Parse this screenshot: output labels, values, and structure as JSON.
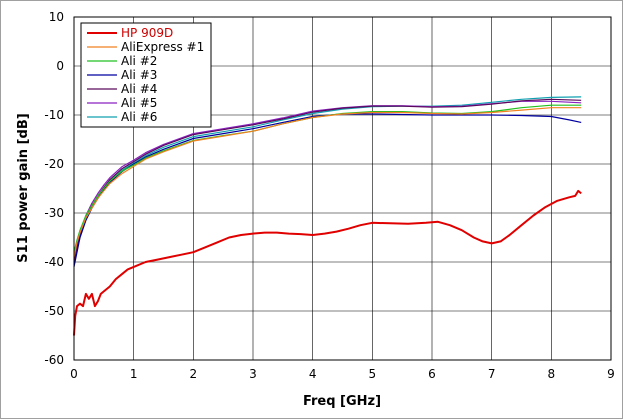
{
  "chart_data": {
    "type": "line",
    "xlabel": "Freq [GHz]",
    "ylabel": "S11 power gain [dB]",
    "xlim": [
      0,
      9
    ],
    "ylim": [
      -60,
      10
    ],
    "xticks": [
      0,
      1,
      2,
      3,
      4,
      5,
      6,
      7,
      8,
      9
    ],
    "yticks": [
      10,
      0,
      -10,
      -20,
      -30,
      -40,
      -50,
      -60
    ],
    "grid": true,
    "legend_position": "top-left",
    "series": [
      {
        "name": "HP 909D",
        "color": "#e00000",
        "x": [
          0.0,
          0.02,
          0.05,
          0.1,
          0.15,
          0.2,
          0.25,
          0.3,
          0.35,
          0.4,
          0.45,
          0.5,
          0.6,
          0.7,
          0.8,
          0.9,
          1.0,
          1.2,
          1.4,
          1.6,
          1.8,
          2.0,
          2.2,
          2.4,
          2.6,
          2.8,
          3.0,
          3.2,
          3.4,
          3.6,
          3.8,
          4.0,
          4.2,
          4.4,
          4.6,
          4.8,
          5.0,
          5.3,
          5.6,
          5.9,
          6.1,
          6.3,
          6.5,
          6.7,
          6.85,
          7.0,
          7.15,
          7.3,
          7.5,
          7.7,
          7.9,
          8.1,
          8.3,
          8.4,
          8.45,
          8.5
        ],
        "y": [
          -55,
          -51,
          -49,
          -48.5,
          -49,
          -46.5,
          -47.5,
          -46.5,
          -49,
          -48,
          -46.5,
          -46,
          -45,
          -43.5,
          -42.5,
          -41.5,
          -41,
          -40,
          -39.5,
          -39,
          -38.5,
          -38,
          -37,
          -36,
          -35,
          -34.5,
          -34.2,
          -34,
          -34,
          -34.2,
          -34.3,
          -34.5,
          -34.2,
          -33.8,
          -33.2,
          -32.5,
          -32,
          -32.1,
          -32.2,
          -32,
          -31.8,
          -32.5,
          -33.5,
          -35,
          -35.8,
          -36.2,
          -35.8,
          -34.5,
          -32.5,
          -30.5,
          -28.8,
          -27.5,
          -26.8,
          -26.5,
          -25.5,
          -26
        ]
      },
      {
        "name": "AliExpress #1",
        "color": "#f08020",
        "x": [
          0.0,
          0.05,
          0.1,
          0.2,
          0.3,
          0.4,
          0.5,
          0.6,
          0.8,
          1.0,
          1.2,
          1.5,
          2.0,
          2.5,
          3.0,
          3.5,
          4.0,
          4.5,
          5.0,
          5.5,
          6.0,
          6.5,
          7.0,
          7.5,
          8.0,
          8.5
        ],
        "y": [
          -39,
          -36,
          -34,
          -31,
          -29,
          -27,
          -25.5,
          -24,
          -22,
          -20.5,
          -19,
          -17.5,
          -15.3,
          -14.3,
          -13.3,
          -11.8,
          -10.5,
          -9.8,
          -9.5,
          -9.5,
          -9.7,
          -9.8,
          -9.5,
          -9,
          -8.5,
          -8.5
        ]
      },
      {
        "name": "Ali #2",
        "color": "#20c020",
        "x": [
          0.0,
          0.05,
          0.1,
          0.2,
          0.3,
          0.4,
          0.5,
          0.6,
          0.8,
          1.0,
          1.2,
          1.5,
          2.0,
          2.5,
          3.0,
          3.5,
          4.0,
          4.5,
          5.0,
          5.5,
          6.0,
          6.5,
          7.0,
          7.5,
          8.0,
          8.5
        ],
        "y": [
          -38,
          -35.5,
          -33.5,
          -30.5,
          -28.5,
          -26.5,
          -25,
          -23.5,
          -21.5,
          -20.2,
          -18.8,
          -17.3,
          -15.2,
          -14.2,
          -13.3,
          -11.8,
          -10.5,
          -9.7,
          -9.3,
          -9.3,
          -9.6,
          -9.7,
          -9.3,
          -8.5,
          -8,
          -8
        ]
      },
      {
        "name": "Ali #3",
        "color": "#0000a0",
        "x": [
          0.0,
          0.05,
          0.1,
          0.2,
          0.3,
          0.4,
          0.5,
          0.6,
          0.8,
          1.0,
          1.2,
          1.5,
          2.0,
          2.5,
          3.0,
          3.5,
          4.0,
          4.5,
          5.0,
          5.5,
          6.0,
          6.5,
          7.0,
          7.5,
          8.0,
          8.3,
          8.5
        ],
        "y": [
          -41,
          -38,
          -35,
          -31.5,
          -29,
          -27,
          -25.3,
          -23.8,
          -21.6,
          -20,
          -18.6,
          -17,
          -14.8,
          -13.8,
          -12.8,
          -11.5,
          -10.3,
          -9.8,
          -9.8,
          -9.9,
          -10,
          -10,
          -10,
          -10.1,
          -10.3,
          -11,
          -11.5
        ]
      },
      {
        "name": "Ali #4",
        "color": "#5a0a5a",
        "x": [
          0.0,
          0.05,
          0.1,
          0.2,
          0.3,
          0.4,
          0.5,
          0.6,
          0.8,
          1.0,
          1.2,
          1.5,
          2.0,
          2.5,
          3.0,
          3.5,
          4.0,
          4.5,
          5.0,
          5.5,
          6.0,
          6.5,
          7.0,
          7.5,
          8.0,
          8.5
        ],
        "y": [
          -40,
          -37,
          -34.5,
          -31,
          -28.5,
          -26.5,
          -24.8,
          -23.2,
          -21,
          -19.5,
          -18,
          -16.2,
          -14,
          -13,
          -12,
          -10.8,
          -9.4,
          -8.6,
          -8.2,
          -8.2,
          -8.4,
          -8.3,
          -7.8,
          -7.1,
          -6.8,
          -7
        ]
      },
      {
        "name": "Ali #5",
        "color": "#8a20c0",
        "x": [
          0.0,
          0.05,
          0.1,
          0.2,
          0.3,
          0.4,
          0.5,
          0.6,
          0.8,
          1.0,
          1.2,
          1.5,
          2.0,
          2.5,
          3.0,
          3.5,
          4.0,
          4.5,
          5.0,
          5.5,
          6.0,
          6.5,
          7.0,
          7.5,
          8.0,
          8.5
        ],
        "y": [
          -39.5,
          -36.5,
          -34,
          -30.5,
          -28,
          -26,
          -24.3,
          -22.8,
          -20.6,
          -19.2,
          -17.7,
          -16,
          -13.8,
          -12.8,
          -11.8,
          -10.6,
          -9.2,
          -8.5,
          -8.1,
          -8.1,
          -8.3,
          -8.2,
          -7.7,
          -7.2,
          -7.2,
          -7.5
        ]
      },
      {
        "name": "Ali #6",
        "color": "#10a0b0",
        "x": [
          0.0,
          0.05,
          0.1,
          0.2,
          0.3,
          0.4,
          0.5,
          0.6,
          0.8,
          1.0,
          1.2,
          1.5,
          2.0,
          2.5,
          3.0,
          3.5,
          4.0,
          4.5,
          5.0,
          5.5,
          6.0,
          6.5,
          7.0,
          7.5,
          8.0,
          8.5
        ],
        "y": [
          -40.5,
          -37.5,
          -35,
          -31.3,
          -28.8,
          -26.8,
          -25,
          -23.5,
          -21.3,
          -19.8,
          -18.3,
          -16.6,
          -14.4,
          -13.4,
          -12.4,
          -11,
          -9.7,
          -8.8,
          -8.3,
          -8.2,
          -8.2,
          -8,
          -7.4,
          -6.8,
          -6.4,
          -6.3
        ]
      }
    ]
  }
}
